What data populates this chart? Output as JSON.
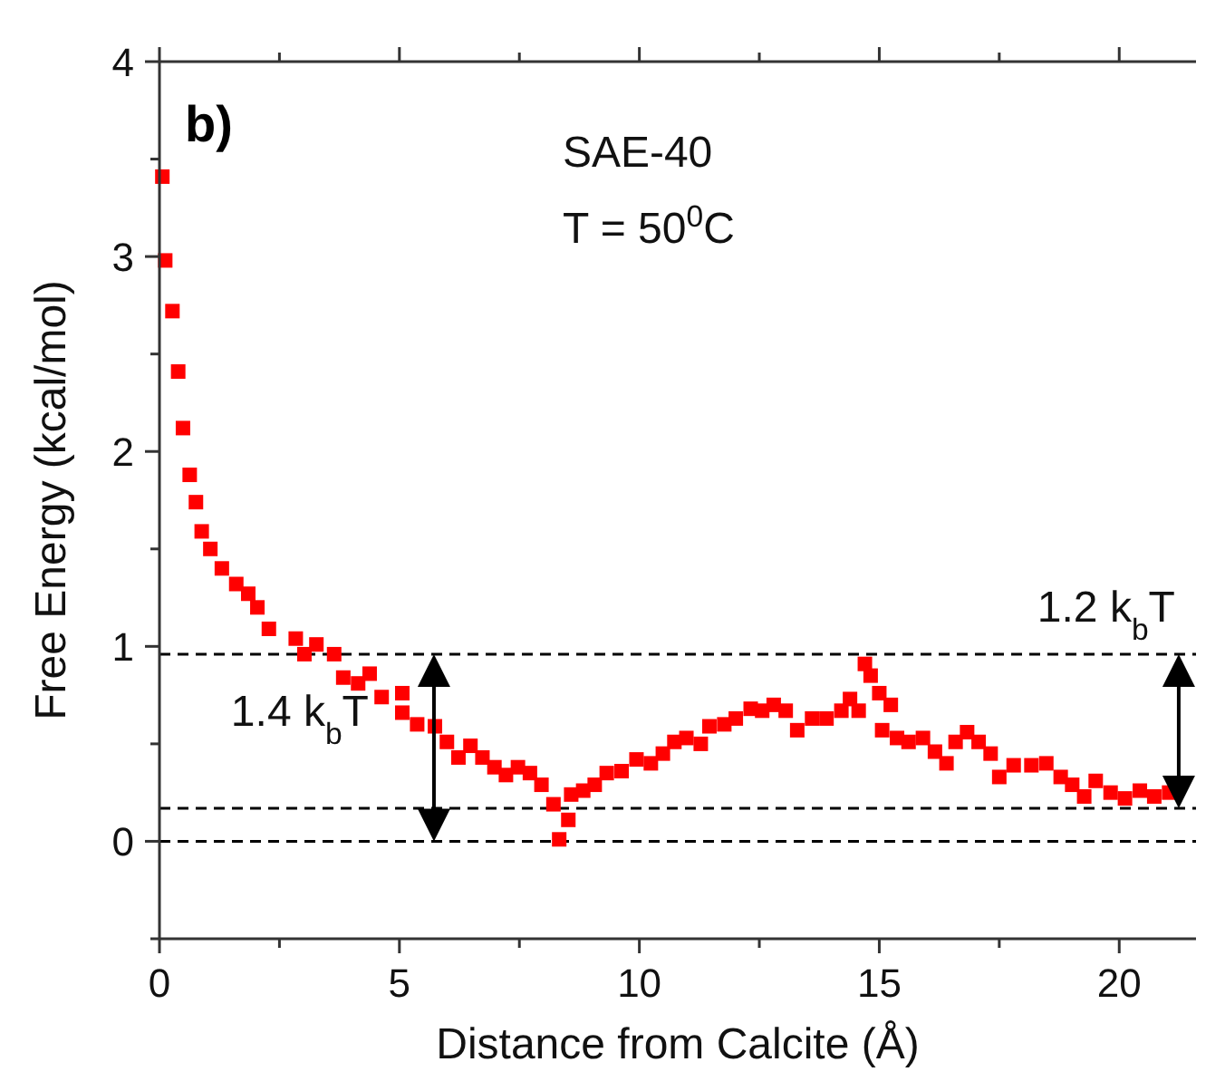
{
  "chart_data": {
    "type": "scatter",
    "xlabel": "Distance from Calcite (Å)",
    "ylabel": "Free Energy (kcal/mol)",
    "xlim": [
      0,
      21.6
    ],
    "xticks": [
      0,
      {
        "value": 2.5,
        "label": null
      },
      5,
      {
        "value": 7.5,
        "label": null
      },
      10,
      {
        "value": 12.5,
        "label": null
      },
      15,
      {
        "value": 17.5,
        "label": null
      },
      20
    ],
    "ylim": [
      -0.5,
      4
    ],
    "yticks": [
      {
        "value": -0.5,
        "label": null
      },
      0,
      {
        "value": 0.5,
        "label": null
      },
      1,
      {
        "value": 1.5,
        "label": null
      },
      2,
      {
        "value": 2.5,
        "label": null
      },
      3,
      {
        "value": 3.5,
        "label": null
      },
      4
    ],
    "marker": "square",
    "grid": false,
    "series": [
      {
        "color": "#ff0000",
        "x": [
          0.06,
          0.12,
          0.27,
          0.39,
          0.49,
          0.63,
          0.76,
          0.88,
          1.06,
          1.3,
          1.6,
          1.85,
          2.04,
          2.28,
          2.84,
          3.02,
          3.27,
          3.64,
          3.83,
          4.14,
          4.38,
          4.63,
          5.06,
          5.06,
          5.37,
          5.74,
          5.99,
          6.23,
          6.48,
          6.73,
          6.98,
          7.22,
          7.47,
          7.72,
          7.96,
          8.21,
          8.33,
          8.52,
          8.58,
          8.83,
          9.07,
          9.32,
          9.63,
          9.94,
          10.24,
          10.49,
          10.73,
          10.98,
          11.28,
          11.46,
          11.77,
          12.01,
          12.32,
          12.56,
          12.8,
          13.05,
          13.29,
          13.6,
          13.9,
          14.21,
          14.39,
          14.57,
          14.7,
          14.82,
          15.0,
          15.06,
          15.24,
          15.37,
          15.61,
          15.91,
          16.16,
          16.4,
          16.59,
          16.83,
          17.07,
          17.32,
          17.5,
          17.8,
          18.17,
          18.48,
          18.78,
          19.02,
          19.27,
          19.51,
          19.82,
          20.12,
          20.43,
          20.73,
          21.04
        ],
        "values": [
          3.41,
          2.98,
          2.72,
          2.41,
          2.12,
          1.88,
          1.74,
          1.59,
          1.5,
          1.4,
          1.32,
          1.27,
          1.2,
          1.09,
          1.04,
          0.96,
          1.01,
          0.96,
          0.84,
          0.81,
          0.86,
          0.74,
          0.76,
          0.66,
          0.6,
          0.59,
          0.51,
          0.43,
          0.49,
          0.43,
          0.38,
          0.34,
          0.38,
          0.35,
          0.29,
          0.19,
          0.01,
          0.11,
          0.24,
          0.26,
          0.29,
          0.35,
          0.36,
          0.42,
          0.4,
          0.45,
          0.51,
          0.53,
          0.5,
          0.59,
          0.6,
          0.63,
          0.68,
          0.67,
          0.7,
          0.67,
          0.57,
          0.63,
          0.63,
          0.67,
          0.73,
          0.67,
          0.91,
          0.85,
          0.76,
          0.57,
          0.7,
          0.53,
          0.51,
          0.53,
          0.46,
          0.4,
          0.51,
          0.56,
          0.51,
          0.45,
          0.33,
          0.39,
          0.39,
          0.4,
          0.33,
          0.29,
          0.23,
          0.31,
          0.25,
          0.22,
          0.26,
          0.23,
          0.25
        ]
      }
    ],
    "ref_lines": [
      {
        "axis": "y",
        "value": 0.96,
        "color": "#000000",
        "line_style": "dashed"
      },
      {
        "axis": "y",
        "value": 0.17,
        "color": "#000000",
        "line_style": "dashed"
      },
      {
        "axis": "y",
        "value": 0,
        "color": "#000000",
        "line_style": "dashed"
      }
    ],
    "annotations": [
      "b)",
      "SAE-40",
      "T = 50$^{0}$C",
      {
        "text": "1.4 k$_{b}$T",
        "x": 5.72,
        "y": 0.96
      },
      {
        "text": "1.2 k$_{b}$T",
        "x": 21.24,
        "y": 0.96
      }
    ]
  }
}
